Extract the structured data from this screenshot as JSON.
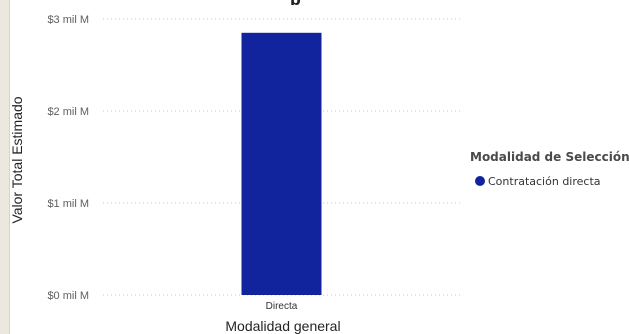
{
  "chart_data": {
    "type": "bar",
    "title": "",
    "xlabel": "Modalidad general",
    "ylabel": "Valor Total Estimado",
    "categories": [
      "Directa"
    ],
    "series": [
      {
        "name": "Contratación directa",
        "values": [
          2.85
        ],
        "color": "#12239e"
      }
    ],
    "y_unit": "mil M",
    "yticks": [
      0,
      1,
      2,
      3
    ],
    "ytick_labels": [
      "$0 mil M",
      "$1 mil M",
      "$2 mil M",
      "$3 mil M"
    ],
    "ylim": [
      0,
      3
    ],
    "grid": "horizontal dotted",
    "legend": {
      "title": "Modalidad de Selección",
      "placement": "right",
      "items": [
        "Contratación directa"
      ]
    }
  }
}
